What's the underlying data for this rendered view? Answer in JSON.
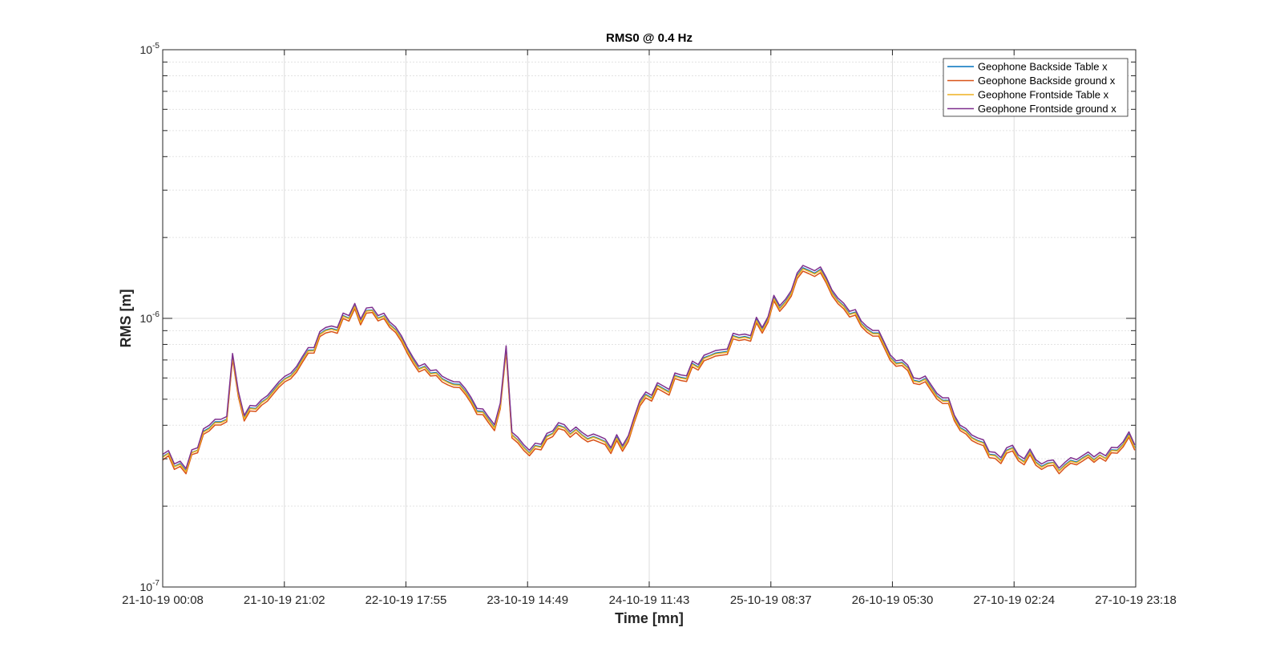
{
  "chart_data": {
    "type": "line",
    "title": "RMS0 @ 0.4 Hz",
    "xlabel": "Time [mn]",
    "ylabel": "RMS [m]",
    "yscale": "log",
    "ylim": [
      1e-07,
      1e-05
    ],
    "yticks": [
      {
        "base": "10",
        "exp": "-7"
      },
      {
        "base": "10",
        "exp": "-6"
      },
      {
        "base": "10",
        "exp": "-5"
      }
    ],
    "xticks": [
      "21-10-19 00:08",
      "21-10-19 21:02",
      "22-10-19 17:55",
      "23-10-19 14:49",
      "24-10-19 11:43",
      "25-10-19 08:37",
      "26-10-19 05:30",
      "27-10-19 02:24",
      "27-10-19 23:18"
    ],
    "xlim": [
      "21-10-19 00:08",
      "27-10-19 23:18"
    ],
    "grid": true,
    "legend_position": "top-right",
    "x": [
      "21-10-19 00:08",
      "21-10-19 01:08",
      "21-10-19 02:08",
      "21-10-19 03:08",
      "21-10-19 04:08",
      "21-10-19 05:08",
      "21-10-19 06:08",
      "21-10-19 07:08",
      "21-10-19 08:08",
      "21-10-19 09:08",
      "21-10-19 10:08",
      "21-10-19 11:08",
      "21-10-19 12:08",
      "21-10-19 13:08",
      "21-10-19 14:08",
      "21-10-19 15:08",
      "21-10-19 16:08",
      "21-10-19 17:08",
      "21-10-19 18:08",
      "21-10-19 19:08",
      "21-10-19 20:08",
      "21-10-19 21:08",
      "21-10-19 22:08",
      "21-10-19 23:08",
      "22-10-19 00:08",
      "22-10-19 01:08",
      "22-10-19 02:08",
      "22-10-19 03:08",
      "22-10-19 04:08",
      "22-10-19 05:08",
      "22-10-19 06:08",
      "22-10-19 07:08",
      "22-10-19 08:08",
      "22-10-19 09:08",
      "22-10-19 10:08",
      "22-10-19 11:08",
      "22-10-19 12:08",
      "22-10-19 13:08",
      "22-10-19 14:08",
      "22-10-19 15:08",
      "22-10-19 16:08",
      "22-10-19 17:08",
      "22-10-19 18:08",
      "22-10-19 19:08",
      "22-10-19 20:08",
      "22-10-19 21:08",
      "22-10-19 22:08",
      "22-10-19 23:08",
      "23-10-19 00:08",
      "23-10-19 01:08",
      "23-10-19 02:08",
      "23-10-19 03:08",
      "23-10-19 04:08",
      "23-10-19 05:08",
      "23-10-19 06:08",
      "23-10-19 07:08",
      "23-10-19 08:08",
      "23-10-19 09:08",
      "23-10-19 10:08",
      "23-10-19 11:08",
      "23-10-19 12:08",
      "23-10-19 13:08",
      "23-10-19 14:08",
      "23-10-19 15:08",
      "23-10-19 16:08",
      "23-10-19 17:08",
      "23-10-19 18:08",
      "23-10-19 19:08",
      "23-10-19 20:08",
      "23-10-19 21:08",
      "23-10-19 22:08",
      "23-10-19 23:08",
      "24-10-19 00:08",
      "24-10-19 01:08",
      "24-10-19 02:08",
      "24-10-19 03:08",
      "24-10-19 04:08",
      "24-10-19 05:08",
      "24-10-19 06:08",
      "24-10-19 07:08",
      "24-10-19 08:08",
      "24-10-19 09:08",
      "24-10-19 10:08",
      "24-10-19 11:08",
      "24-10-19 12:08",
      "24-10-19 13:08",
      "24-10-19 14:08",
      "24-10-19 15:08",
      "24-10-19 16:08",
      "24-10-19 17:08",
      "24-10-19 18:08",
      "24-10-19 19:08",
      "24-10-19 20:08",
      "24-10-19 21:08",
      "24-10-19 22:08",
      "24-10-19 23:08",
      "25-10-19 00:08",
      "25-10-19 01:08",
      "25-10-19 02:08",
      "25-10-19 03:08",
      "25-10-19 04:08",
      "25-10-19 05:08",
      "25-10-19 06:08",
      "25-10-19 07:08",
      "25-10-19 08:08",
      "25-10-19 09:08",
      "25-10-19 10:08",
      "25-10-19 11:08",
      "25-10-19 12:08",
      "25-10-19 13:08",
      "25-10-19 14:08",
      "25-10-19 15:08",
      "25-10-19 16:08",
      "25-10-19 17:08",
      "25-10-19 18:08",
      "25-10-19 19:08",
      "25-10-19 20:08",
      "25-10-19 21:08",
      "25-10-19 22:08",
      "25-10-19 23:08",
      "26-10-19 00:08",
      "26-10-19 01:08",
      "26-10-19 02:08",
      "26-10-19 03:08",
      "26-10-19 04:08",
      "26-10-19 05:08",
      "26-10-19 06:08",
      "26-10-19 07:08",
      "26-10-19 08:08",
      "26-10-19 09:08",
      "26-10-19 10:08",
      "26-10-19 11:08",
      "26-10-19 12:08",
      "26-10-19 13:08",
      "26-10-19 14:08",
      "26-10-19 15:08",
      "26-10-19 16:08",
      "26-10-19 17:08",
      "26-10-19 18:08",
      "26-10-19 19:08",
      "26-10-19 20:08",
      "26-10-19 21:08",
      "26-10-19 22:08",
      "26-10-19 23:08",
      "27-10-19 00:08",
      "27-10-19 01:08",
      "27-10-19 02:08",
      "27-10-19 03:08",
      "27-10-19 04:08",
      "27-10-19 05:08",
      "27-10-19 06:08",
      "27-10-19 07:08",
      "27-10-19 08:08",
      "27-10-19 09:08",
      "27-10-19 10:08",
      "27-10-19 11:08",
      "27-10-19 12:08",
      "27-10-19 13:08",
      "27-10-19 14:08",
      "27-10-19 15:08",
      "27-10-19 16:08",
      "27-10-19 17:08",
      "27-10-19 18:08",
      "27-10-19 19:08",
      "27-10-19 20:08",
      "27-10-19 21:08",
      "27-10-19 22:08",
      "27-10-19 23:08"
    ],
    "series": [
      {
        "name": "Geophone Backside Table x",
        "color": "#0072bd",
        "values": [
          3.06e-07,
          3.15e-07,
          2.81e-07,
          2.88e-07,
          2.71e-07,
          3.17e-07,
          3.23e-07,
          3.8e-07,
          3.91e-07,
          4.12e-07,
          4.12e-07,
          4.21e-07,
          7.26e-07,
          5.25e-07,
          4.26e-07,
          4.64e-07,
          4.62e-07,
          4.88e-07,
          5.05e-07,
          5.37e-07,
          5.7e-07,
          5.96e-07,
          6.12e-07,
          6.48e-07,
          7.05e-07,
          7.61e-07,
          7.62e-07,
          8.75e-07,
          9.06e-07,
          9.17e-07,
          9.04e-07,
          1.024e-06,
          1.002e-06,
          1.111e-06,
          9.72e-07,
          1.069e-06,
          1.074e-06,
          1.002e-06,
          1.022e-06,
          9.49e-07,
          9.09e-07,
          8.43e-07,
          7.64e-07,
          7.01e-07,
          6.49e-07,
          6.63e-07,
          6.25e-07,
          6.29e-07,
          5.96e-07,
          5.81e-07,
          5.69e-07,
          5.68e-07,
          5.35e-07,
          4.96e-07,
          4.52e-07,
          4.5e-07,
          4.2e-07,
          3.93e-07,
          4.73e-07,
          7.75e-07,
          3.69e-07,
          3.53e-07,
          3.32e-07,
          3.16e-07,
          3.36e-07,
          3.33e-07,
          3.65e-07,
          3.73e-07,
          4e-07,
          3.93e-07,
          3.71e-07,
          3.86e-07,
          3.69e-07,
          3.56e-07,
          3.63e-07,
          3.56e-07,
          3.48e-07,
          3.23e-07,
          3.61e-07,
          3.29e-07,
          3.58e-07,
          4.2e-07,
          4.85e-07,
          5.21e-07,
          5.06e-07,
          5.64e-07,
          5.48e-07,
          5.33e-07,
          6.13e-07,
          6.03e-07,
          5.98e-07,
          6.79e-07,
          6.59e-07,
          7.14e-07,
          7.27e-07,
          7.43e-07,
          7.48e-07,
          7.53e-07,
          8.62e-07,
          8.48e-07,
          8.56e-07,
          8.44e-07,
          9.88e-07,
          9.05e-07,
          9.93e-07,
          1.193e-06,
          1.091e-06,
          1.154e-06,
          1.244e-06,
          1.445e-06,
          1.542e-06,
          1.509e-06,
          1.473e-06,
          1.522e-06,
          1.391e-06,
          1.247e-06,
          1.165e-06,
          1.114e-06,
          1.04e-06,
          1.055e-06,
          9.58e-07,
          9.13e-07,
          8.82e-07,
          8.82e-07,
          7.95e-07,
          7.16e-07,
          6.81e-07,
          6.86e-07,
          6.56e-07,
          5.88e-07,
          5.82e-07,
          5.97e-07,
          5.54e-07,
          5.15e-07,
          4.95e-07,
          4.95e-07,
          4.27e-07,
          3.92e-07,
          3.81e-07,
          3.6e-07,
          3.51e-07,
          3.45e-07,
          3.12e-07,
          3.1e-07,
          2.96e-07,
          3.23e-07,
          3.3e-07,
          3.03e-07,
          2.93e-07,
          3.19e-07,
          2.92e-07,
          2.81e-07,
          2.89e-07,
          2.91e-07,
          2.71e-07,
          2.85e-07,
          2.96e-07,
          2.92e-07,
          3.02e-07,
          3.11e-07,
          2.98e-07,
          3.1e-07,
          3.01e-07,
          3.24e-07,
          3.23e-07,
          3.4e-07,
          3.7e-07,
          3.31e-07
        ]
      },
      {
        "name": "Geophone Backside ground x",
        "color": "#d95319",
        "values": [
          2.97e-07,
          3.08e-07,
          2.74e-07,
          2.81e-07,
          2.64e-07,
          3.11e-07,
          3.16e-07,
          3.7e-07,
          3.81e-07,
          4.01e-07,
          4.01e-07,
          4.12e-07,
          7.06e-07,
          5.1e-07,
          4.15e-07,
          4.52e-07,
          4.5e-07,
          4.75e-07,
          4.92e-07,
          5.23e-07,
          5.55e-07,
          5.81e-07,
          5.96e-07,
          6.31e-07,
          6.86e-07,
          7.42e-07,
          7.43e-07,
          8.55e-07,
          8.82e-07,
          8.93e-07,
          8.8e-07,
          9.99e-07,
          9.77e-07,
          1.086e-06,
          9.46e-07,
          1.046e-06,
          1.052e-06,
          9.78e-07,
          9.99e-07,
          9.25e-07,
          8.86e-07,
          8.21e-07,
          7.43e-07,
          6.81e-07,
          6.32e-07,
          6.46e-07,
          6.1e-07,
          6.13e-07,
          5.8e-07,
          5.65e-07,
          5.54e-07,
          5.53e-07,
          5.21e-07,
          4.83e-07,
          4.39e-07,
          4.38e-07,
          4.08e-07,
          3.82e-07,
          4.61e-07,
          7.52e-07,
          3.59e-07,
          3.44e-07,
          3.23e-07,
          3.08e-07,
          3.27e-07,
          3.24e-07,
          3.54e-07,
          3.63e-07,
          3.89e-07,
          3.83e-07,
          3.61e-07,
          3.76e-07,
          3.59e-07,
          3.47e-07,
          3.53e-07,
          3.46e-07,
          3.39e-07,
          3.14e-07,
          3.51e-07,
          3.2e-07,
          3.48e-07,
          4.09e-07,
          4.72e-07,
          5.06e-07,
          4.92e-07,
          5.48e-07,
          5.33e-07,
          5.18e-07,
          5.97e-07,
          5.87e-07,
          5.82e-07,
          6.6e-07,
          6.42e-07,
          6.95e-07,
          7.09e-07,
          7.24e-07,
          7.29e-07,
          7.34e-07,
          8.39e-07,
          8.27e-07,
          8.34e-07,
          8.22e-07,
          9.62e-07,
          8.81e-07,
          9.67e-07,
          1.162e-06,
          1.062e-06,
          1.124e-06,
          1.211e-06,
          1.405e-06,
          1.499e-06,
          1.467e-06,
          1.432e-06,
          1.48e-06,
          1.353e-06,
          1.214e-06,
          1.134e-06,
          1.085e-06,
          1.012e-06,
          1.028e-06,
          9.33e-07,
          8.88e-07,
          8.59e-07,
          8.59e-07,
          7.74e-07,
          6.97e-07,
          6.63e-07,
          6.68e-07,
          6.39e-07,
          5.73e-07,
          5.67e-07,
          5.81e-07,
          5.39e-07,
          5.01e-07,
          4.82e-07,
          4.82e-07,
          4.16e-07,
          3.82e-07,
          3.71e-07,
          3.51e-07,
          3.42e-07,
          3.36e-07,
          3.03e-07,
          3.01e-07,
          2.88e-07,
          3.15e-07,
          3.21e-07,
          2.95e-07,
          2.85e-07,
          3.11e-07,
          2.84e-07,
          2.74e-07,
          2.82e-07,
          2.84e-07,
          2.64e-07,
          2.78e-07,
          2.89e-07,
          2.85e-07,
          2.94e-07,
          3.04e-07,
          2.91e-07,
          3.03e-07,
          2.94e-07,
          3.16e-07,
          3.15e-07,
          3.32e-07,
          3.61e-07,
          3.23e-07
        ]
      },
      {
        "name": "Geophone Frontside Table x",
        "color": "#edb120",
        "values": [
          3.04e-07,
          3.14e-07,
          2.8e-07,
          2.86e-07,
          2.69e-07,
          3.16e-07,
          3.22e-07,
          3.77e-07,
          3.88e-07,
          4.09e-07,
          4.09e-07,
          4.19e-07,
          7.2e-07,
          5.21e-07,
          4.23e-07,
          4.61e-07,
          4.59e-07,
          4.85e-07,
          5.02e-07,
          5.33e-07,
          5.66e-07,
          5.93e-07,
          6.08e-07,
          6.43e-07,
          7e-07,
          7.56e-07,
          7.57e-07,
          8.7e-07,
          9e-07,
          9.11e-07,
          8.98e-07,
          1.018e-06,
          9.96e-07,
          1.106e-06,
          9.66e-07,
          1.064e-06,
          1.069e-06,
          9.96e-07,
          1.017e-06,
          9.43e-07,
          9.03e-07,
          8.38e-07,
          7.59e-07,
          6.96e-07,
          6.45e-07,
          6.59e-07,
          6.21e-07,
          6.25e-07,
          5.92e-07,
          5.77e-07,
          5.65e-07,
          5.64e-07,
          5.31e-07,
          4.92e-07,
          4.48e-07,
          4.47e-07,
          4.17e-07,
          3.9e-07,
          4.7e-07,
          7.68e-07,
          3.67e-07,
          3.51e-07,
          3.3e-07,
          3.14e-07,
          3.34e-07,
          3.31e-07,
          3.62e-07,
          3.71e-07,
          3.97e-07,
          3.91e-07,
          3.69e-07,
          3.84e-07,
          3.67e-07,
          3.54e-07,
          3.61e-07,
          3.54e-07,
          3.46e-07,
          3.21e-07,
          3.58e-07,
          3.27e-07,
          3.56e-07,
          4.17e-07,
          4.82e-07,
          5.17e-07,
          5.02e-07,
          5.6e-07,
          5.44e-07,
          5.29e-07,
          6.09e-07,
          5.99e-07,
          5.94e-07,
          6.74e-07,
          6.55e-07,
          7.09e-07,
          7.23e-07,
          7.38e-07,
          7.43e-07,
          7.48e-07,
          8.56e-07,
          8.43e-07,
          8.5e-07,
          8.38e-07,
          9.81e-07,
          8.99e-07,
          9.86e-07,
          1.184e-06,
          1.083e-06,
          1.146e-06,
          1.235e-06,
          1.434e-06,
          1.53e-06,
          1.497e-06,
          1.462e-06,
          1.51e-06,
          1.38e-06,
          1.238e-06,
          1.157e-06,
          1.106e-06,
          1.033e-06,
          1.048e-06,
          9.51e-07,
          9.06e-07,
          8.76e-07,
          8.76e-07,
          7.89e-07,
          7.11e-07,
          6.76e-07,
          6.81e-07,
          6.52e-07,
          5.84e-07,
          5.78e-07,
          5.93e-07,
          5.5e-07,
          5.11e-07,
          4.92e-07,
          4.92e-07,
          4.24e-07,
          3.89e-07,
          3.78e-07,
          3.58e-07,
          3.49e-07,
          3.43e-07,
          3.1e-07,
          3.08e-07,
          2.94e-07,
          3.21e-07,
          3.28e-07,
          3.01e-07,
          2.91e-07,
          3.17e-07,
          2.9e-07,
          2.79e-07,
          2.87e-07,
          2.9e-07,
          2.7e-07,
          2.83e-07,
          2.94e-07,
          2.9e-07,
          3e-07,
          3.09e-07,
          2.96e-07,
          3.09e-07,
          3e-07,
          3.22e-07,
          3.21e-07,
          3.38e-07,
          3.67e-07,
          3.29e-07
        ]
      },
      {
        "name": "Geophone Frontside ground x",
        "color": "#7e2f8e",
        "values": [
          3.12e-07,
          3.22e-07,
          2.87e-07,
          2.94e-07,
          2.76e-07,
          3.24e-07,
          3.3e-07,
          3.88e-07,
          4e-07,
          4.21e-07,
          4.21e-07,
          4.31e-07,
          7.4e-07,
          5.35e-07,
          4.35e-07,
          4.74e-07,
          4.72e-07,
          4.98e-07,
          5.16e-07,
          5.48e-07,
          5.82e-07,
          6.09e-07,
          6.25e-07,
          6.62e-07,
          7.2e-07,
          7.78e-07,
          7.79e-07,
          8.93e-07,
          9.25e-07,
          9.37e-07,
          9.24e-07,
          1.046e-06,
          1.024e-06,
          1.136e-06,
          9.93e-07,
          1.093e-06,
          1.099e-06,
          1.024e-06,
          1.045e-06,
          9.7e-07,
          9.29e-07,
          8.62e-07,
          7.8e-07,
          7.16e-07,
          6.63e-07,
          6.78e-07,
          6.39e-07,
          6.43e-07,
          6.09e-07,
          5.93e-07,
          5.81e-07,
          5.8e-07,
          5.47e-07,
          5.07e-07,
          4.62e-07,
          4.6e-07,
          4.29e-07,
          4.02e-07,
          4.84e-07,
          7.9e-07,
          3.77e-07,
          3.61e-07,
          3.39e-07,
          3.23e-07,
          3.43e-07,
          3.4e-07,
          3.73e-07,
          3.81e-07,
          4.09e-07,
          4.02e-07,
          3.79e-07,
          3.94e-07,
          3.77e-07,
          3.64e-07,
          3.71e-07,
          3.64e-07,
          3.56e-07,
          3.3e-07,
          3.69e-07,
          3.36e-07,
          3.66e-07,
          4.29e-07,
          4.96e-07,
          5.32e-07,
          5.17e-07,
          5.76e-07,
          5.6e-07,
          5.44e-07,
          6.26e-07,
          6.16e-07,
          6.11e-07,
          6.93e-07,
          6.73e-07,
          7.29e-07,
          7.43e-07,
          7.59e-07,
          7.64e-07,
          7.69e-07,
          8.8e-07,
          8.67e-07,
          8.74e-07,
          8.62e-07,
          1.009e-06,
          9.24e-07,
          1.014e-06,
          1.218e-06,
          1.114e-06,
          1.178e-06,
          1.27e-06,
          1.475e-06,
          1.574e-06,
          1.54e-06,
          1.504e-06,
          1.554e-06,
          1.42e-06,
          1.273e-06,
          1.19e-06,
          1.138e-06,
          1.062e-06,
          1.078e-06,
          9.78e-07,
          9.32e-07,
          9.01e-07,
          9.01e-07,
          8.12e-07,
          7.31e-07,
          6.95e-07,
          7.01e-07,
          6.7e-07,
          6.01e-07,
          5.95e-07,
          6.1e-07,
          5.66e-07,
          5.26e-07,
          5.06e-07,
          5.06e-07,
          4.36e-07,
          4e-07,
          3.89e-07,
          3.68e-07,
          3.59e-07,
          3.53e-07,
          3.19e-07,
          3.17e-07,
          3.03e-07,
          3.3e-07,
          3.37e-07,
          3.1e-07,
          3e-07,
          3.26e-07,
          2.98e-07,
          2.87e-07,
          2.95e-07,
          2.97e-07,
          2.77e-07,
          2.91e-07,
          3.03e-07,
          2.98e-07,
          3.08e-07,
          3.18e-07,
          3.05e-07,
          3.17e-07,
          3.08e-07,
          3.31e-07,
          3.3e-07,
          3.47e-07,
          3.78e-07,
          3.38e-07
        ]
      }
    ]
  }
}
